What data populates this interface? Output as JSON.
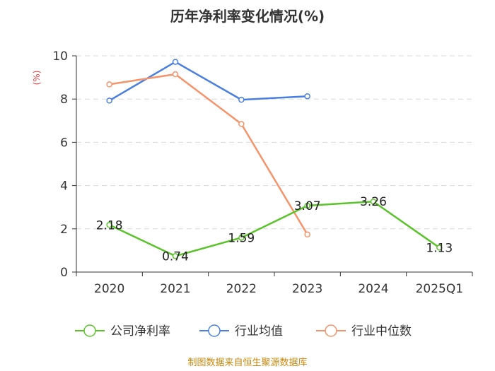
{
  "chart_data": {
    "type": "line",
    "title": "历年净利率变化情况(%)",
    "ylabel": "(%)",
    "xlabel": "",
    "categories": [
      "2020",
      "2021",
      "2022",
      "2023",
      "2024",
      "2025Q1"
    ],
    "ylim": [
      0,
      10
    ],
    "yticks": [
      0,
      2,
      4,
      6,
      8,
      10
    ],
    "grid": true,
    "legend_position": "bottom",
    "series": [
      {
        "name": "公司净利率",
        "color": "#5ac32a",
        "values": [
          2.18,
          0.74,
          1.59,
          3.07,
          3.26,
          1.13
        ],
        "labels": [
          "2.18",
          "0.74",
          "1.59",
          "3.07",
          "3.26",
          "1.13"
        ],
        "show_labels": true
      },
      {
        "name": "行业均值",
        "color": "#4a7ee0",
        "values": [
          7.93,
          9.72,
          7.97,
          8.13,
          null,
          null
        ],
        "show_labels": false
      },
      {
        "name": "行业中位数",
        "color": "#f5936a",
        "values": [
          8.68,
          9.15,
          6.85,
          1.74,
          null,
          null
        ],
        "show_labels": false
      }
    ]
  },
  "source": "制图数据来自恒生聚源数据库"
}
